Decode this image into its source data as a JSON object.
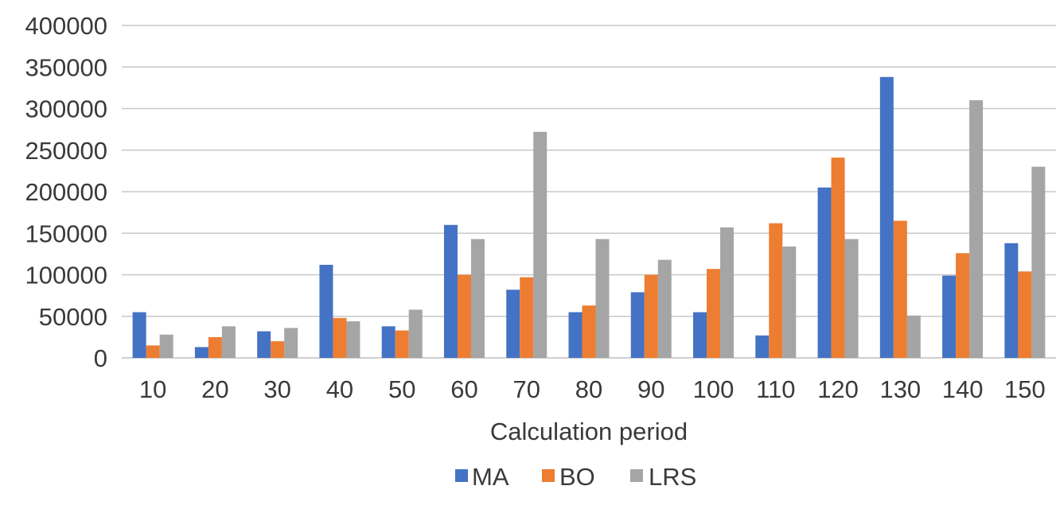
{
  "chart_data": {
    "type": "bar",
    "title": "",
    "xlabel": "Calculation period",
    "ylabel": "",
    "ylim": [
      0,
      400000
    ],
    "yticks": [
      0,
      50000,
      100000,
      150000,
      200000,
      250000,
      300000,
      350000,
      400000
    ],
    "grid": true,
    "legend_position": "bottom",
    "categories": [
      "10",
      "20",
      "30",
      "40",
      "50",
      "60",
      "70",
      "80",
      "90",
      "100",
      "110",
      "120",
      "130",
      "140",
      "150"
    ],
    "series": [
      {
        "name": "MA",
        "color": "#4472c4",
        "values": [
          55000,
          13000,
          32000,
          112000,
          38000,
          160000,
          82000,
          55000,
          79000,
          55000,
          27000,
          205000,
          338000,
          99000,
          138000
        ]
      },
      {
        "name": "BO",
        "color": "#ed7d31",
        "values": [
          15000,
          25000,
          20000,
          48000,
          33000,
          100000,
          97000,
          63000,
          100000,
          107000,
          162000,
          241000,
          165000,
          126000,
          104000
        ]
      },
      {
        "name": "LRS",
        "color": "#a5a5a5",
        "values": [
          28000,
          38000,
          36000,
          44000,
          58000,
          143000,
          272000,
          143000,
          118000,
          157000,
          134000,
          143000,
          51000,
          310000,
          230000
        ]
      }
    ]
  }
}
